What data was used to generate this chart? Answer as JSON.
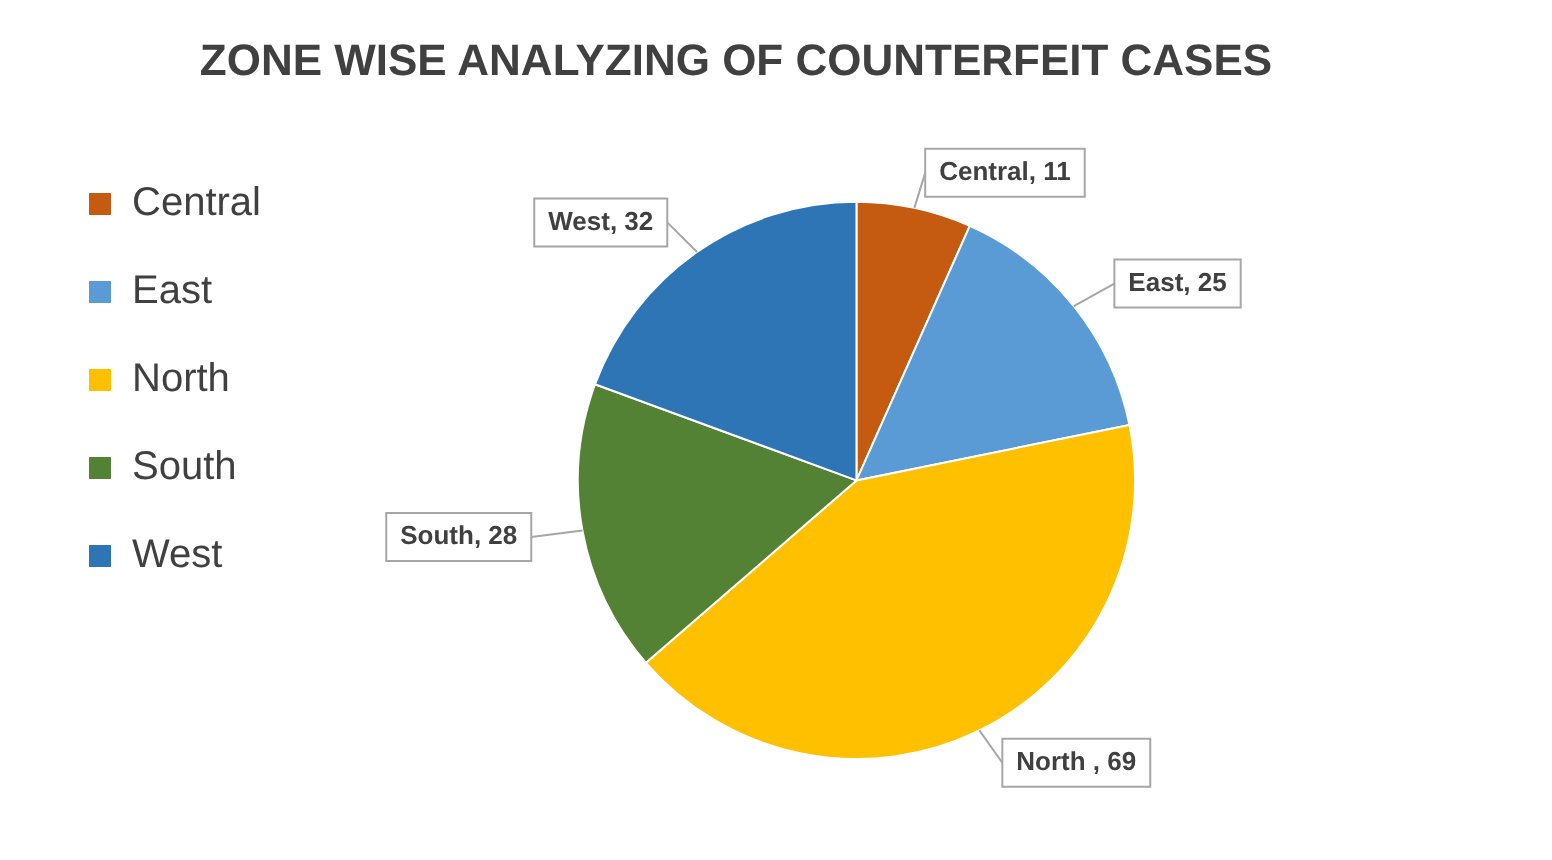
{
  "chart_data": {
    "type": "pie",
    "title": "ZONE WISE ANALYZING OF COUNTERFEIT CASES",
    "categories": [
      "Central",
      "East",
      "North",
      "South",
      "West"
    ],
    "values": [
      11,
      25,
      69,
      28,
      32
    ],
    "colors": [
      "#c55a11",
      "#5b9bd5",
      "#ffc000",
      "#548235",
      "#2e75b6"
    ],
    "value_labels": [
      "Central, 11",
      "East, 25",
      "North , 69",
      "South, 28",
      "West, 32"
    ],
    "legend": "left"
  }
}
